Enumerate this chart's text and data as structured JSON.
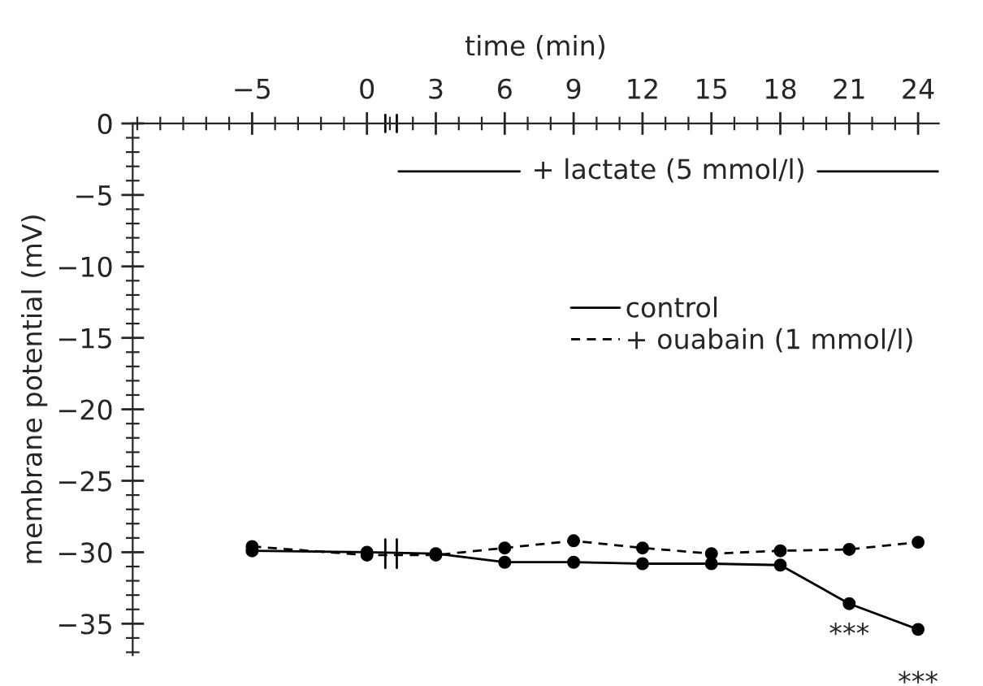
{
  "chart_data": {
    "type": "line",
    "xlabel": "time (min)",
    "ylabel": "membrane potential (mV)",
    "x": [
      -5,
      0,
      3,
      6,
      9,
      12,
      15,
      18,
      21,
      24
    ],
    "series": [
      {
        "name": "control",
        "color": "#000000",
        "line_style": "solid",
        "values": [
          -29.9,
          -30.0,
          -30.1,
          -30.7,
          -30.7,
          -30.8,
          -30.8,
          -30.9,
          -33.6,
          -35.4
        ]
      },
      {
        "name": "+ ouabain (1 mmol/l)",
        "color": "#000000",
        "line_style": "dashed",
        "values": [
          -29.6,
          -30.2,
          -30.2,
          -29.7,
          -29.2,
          -29.7,
          -30.1,
          -29.9,
          -29.8,
          -29.3
        ]
      }
    ],
    "marker": "circle",
    "xlim": [
      -10.2,
      24.9
    ],
    "ylim": [
      -37.2,
      0
    ],
    "xticks": [
      -5,
      0,
      3,
      6,
      9,
      12,
      15,
      18,
      21,
      24
    ],
    "yticks": [
      0,
      -5,
      -10,
      -15,
      -20,
      -25,
      -30,
      -35
    ],
    "grid": false,
    "legend": "right",
    "annotations": [
      "+ lactate (5 mmol/l)",
      "***",
      "***"
    ]
  }
}
